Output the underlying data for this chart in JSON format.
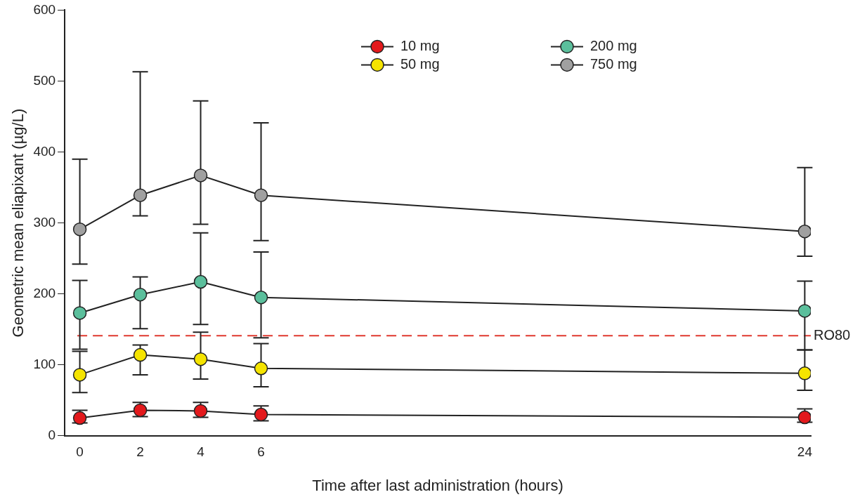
{
  "chart_data": {
    "type": "line",
    "xlabel": "Time after last administration (hours)",
    "ylabel": "Geometric mean eliapixant (µg/L)",
    "x": [
      0,
      2,
      4,
      6,
      24
    ],
    "series": [
      {
        "name": "10 mg",
        "color": "#e3191c",
        "values": [
          25,
          36,
          35,
          30,
          26
        ],
        "errors": [
          [
            18,
            36
          ],
          [
            27,
            47
          ],
          [
            26,
            47
          ],
          [
            21,
            42
          ],
          [
            19,
            38
          ]
        ]
      },
      {
        "name": "50 mg",
        "color": "#f5e400",
        "values": [
          86,
          114,
          108,
          95,
          88
        ],
        "errors": [
          [
            61,
            119
          ],
          [
            86,
            128
          ],
          [
            80,
            146
          ],
          [
            69,
            130
          ],
          [
            64,
            121
          ]
        ]
      },
      {
        "name": "200 mg",
        "color": "#5bbf9c",
        "values": [
          173,
          199,
          217,
          195,
          176
        ],
        "errors": [
          [
            122,
            219
          ],
          [
            151,
            224
          ],
          [
            157,
            286
          ],
          [
            138,
            259
          ],
          [
            121,
            218
          ]
        ]
      },
      {
        "name": "750 mg",
        "color": "#a0a0a0",
        "values": [
          291,
          339,
          367,
          339,
          288
        ],
        "errors": [
          [
            242,
            390
          ],
          [
            310,
            513
          ],
          [
            298,
            472
          ],
          [
            275,
            441
          ],
          [
            253,
            378
          ]
        ]
      }
    ],
    "xlim": [
      -0.5,
      24.2
    ],
    "xticks": [
      0,
      2,
      4,
      6,
      24
    ],
    "ylim": [
      0,
      600
    ],
    "yticks": [
      0,
      100,
      200,
      300,
      400,
      500,
      600
    ],
    "ref_lines": [
      {
        "axis": "y",
        "value": 141,
        "label": "RO80",
        "color": "#e0392f",
        "line_style": "dashed"
      }
    ],
    "grid": false,
    "legend": "top right",
    "marker": "circle",
    "line_style": "solid"
  }
}
